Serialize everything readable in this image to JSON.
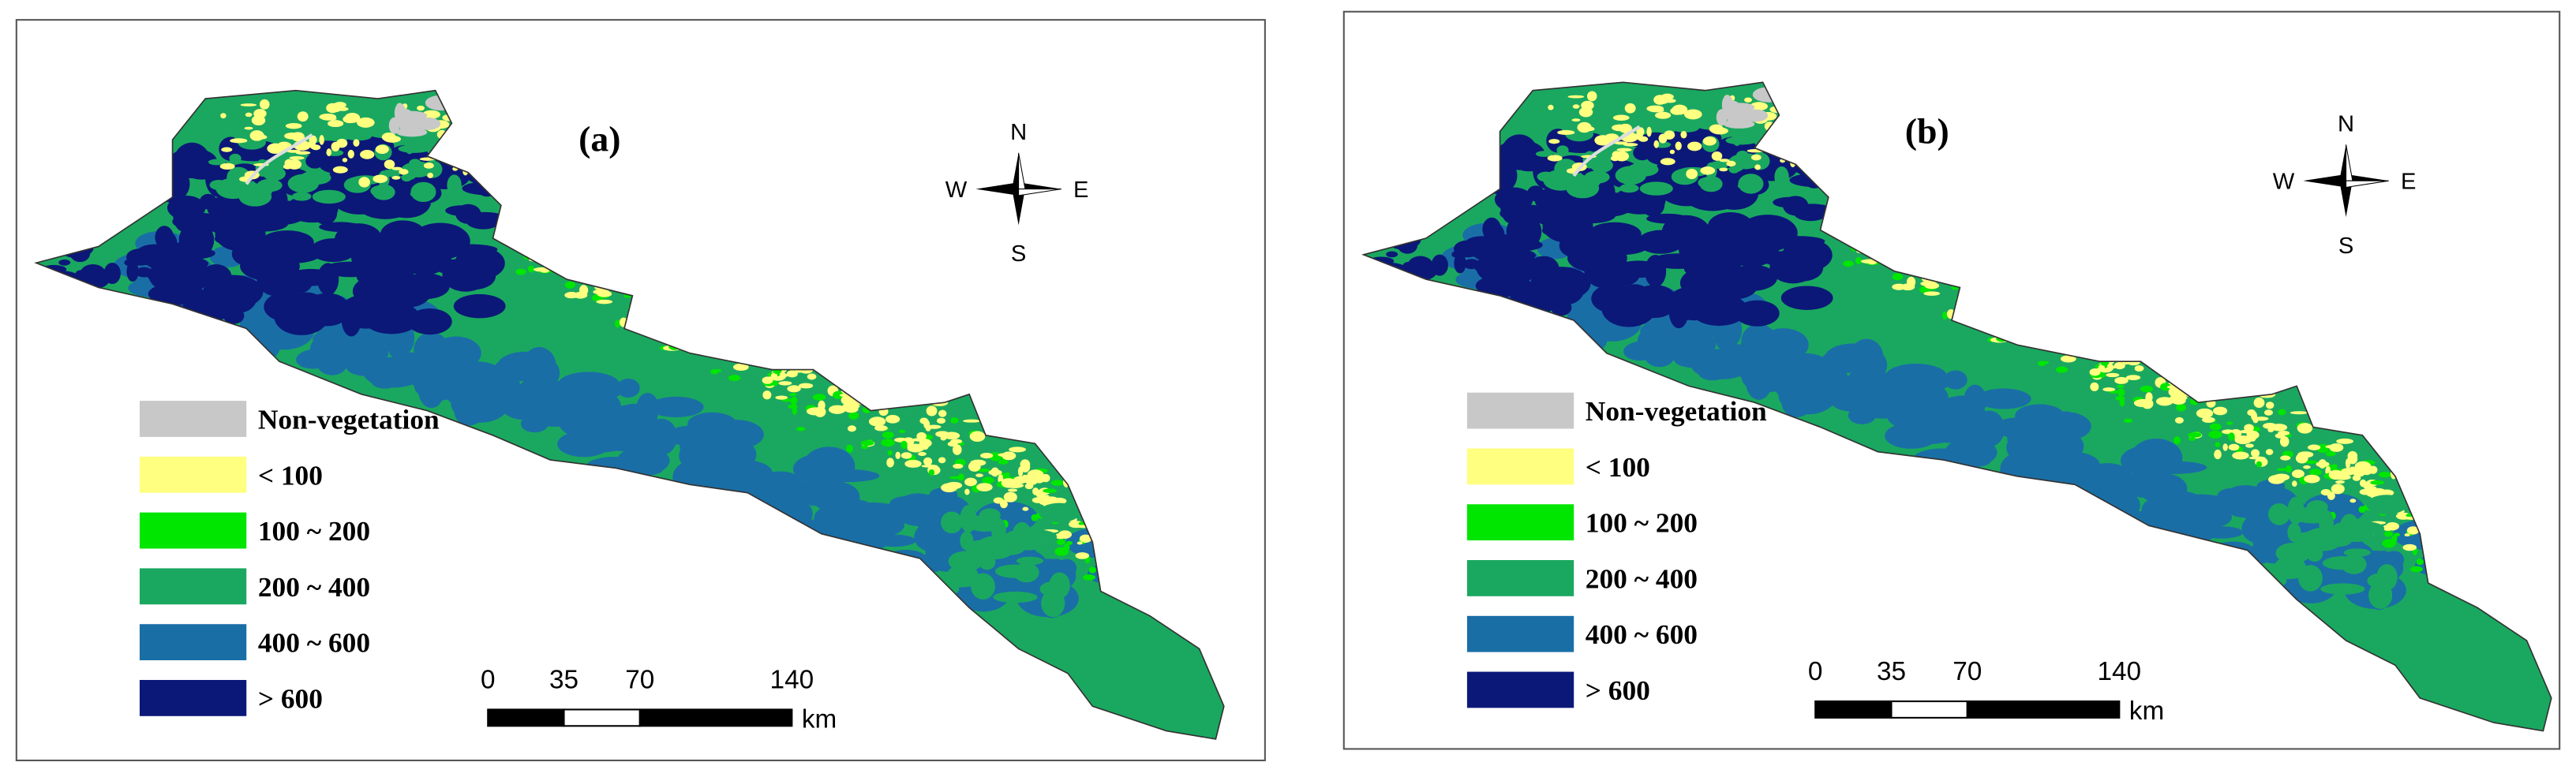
{
  "panels": [
    {
      "label": "(a)"
    },
    {
      "label": "(b)"
    }
  ],
  "legend": [
    {
      "label": "Non-vegetation",
      "color": "#c8c8c8"
    },
    {
      "label": "< 100",
      "color": "#ffff80"
    },
    {
      "label": "100 ~ 200",
      "color": "#00e600"
    },
    {
      "label": "200 ~ 400",
      "color": "#1aa860"
    },
    {
      "label": "400 ~ 600",
      "color": "#1a6ea6"
    },
    {
      "label": "> 600",
      "color": "#0b1878"
    }
  ],
  "compass": {
    "n": "N",
    "s": "S",
    "w": "W",
    "e": "E"
  },
  "scale_bar": {
    "ticks": [
      0,
      35,
      70,
      140
    ],
    "unit": "km"
  }
}
